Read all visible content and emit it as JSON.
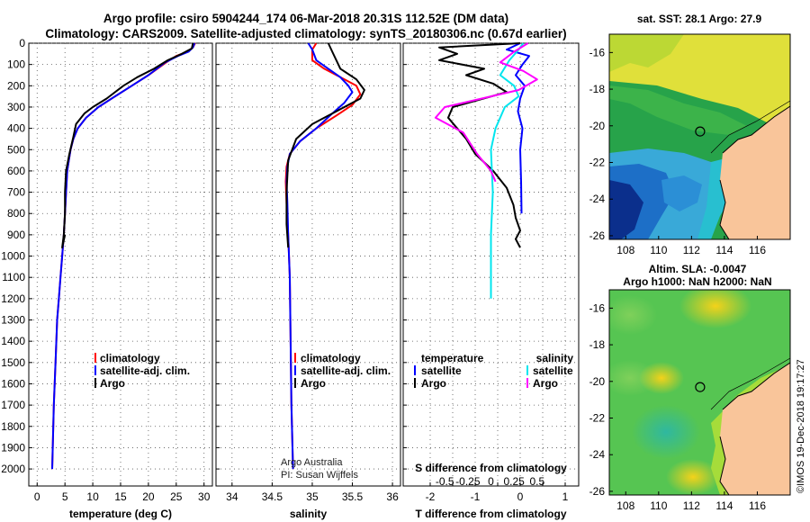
{
  "header": {
    "title_line1": "Argo profile: csiro 5904244_174 06-Mar-2018 20.31S 112.52E (DM data)",
    "title_line2": "Climatology: CARS2009. Satellite-adjusted climatology: synTS_20180306.nc (0.67d earlier)"
  },
  "colors": {
    "climatology": "#ff0000",
    "satellite": "#0000ff",
    "argo": "#000000",
    "sal_satellite": "#00e5ee",
    "sal_argo": "#ff00ff",
    "land": "#f9c59a"
  },
  "chart_data": [
    {
      "type": "line",
      "panel": "temperature",
      "xlabel": "temperature (deg C)",
      "ylabel": "",
      "xlim": [
        -1.5,
        31.5
      ],
      "ylim": [
        2080,
        0
      ],
      "y_ticks": [
        0,
        100,
        200,
        300,
        400,
        500,
        600,
        700,
        800,
        900,
        1000,
        1100,
        1200,
        1300,
        1400,
        1500,
        1600,
        1700,
        1800,
        1900,
        2000
      ],
      "x_ticks": [
        0,
        5,
        10,
        15,
        20,
        25,
        30
      ],
      "grid": true,
      "legend": {
        "placement": "bottom",
        "entries": [
          "climatology",
          "satellite-adj. clim.",
          "Argo"
        ]
      },
      "series": [
        {
          "name": "climatology",
          "color": "#ff0000",
          "x": [
            28.4,
            28.0,
            27.0,
            25.0,
            23.2,
            20.0,
            17.0,
            14.0,
            11.0,
            8.8,
            7.3,
            6.5,
            6.0,
            5.7,
            5.4,
            5.2,
            5.0,
            4.8,
            4.5,
            4.2,
            3.9,
            3.6,
            3.3,
            3.0,
            2.7
          ],
          "y": [
            0,
            20,
            40,
            60,
            90,
            150,
            200,
            250,
            300,
            350,
            400,
            450,
            500,
            550,
            600,
            700,
            800,
            900,
            1000,
            1100,
            1200,
            1300,
            1500,
            1700,
            2000
          ]
        },
        {
          "name": "satellite-adj. clim.",
          "color": "#0000ff",
          "x": [
            28.3,
            28.0,
            27.2,
            25.3,
            23.0,
            20.0,
            17.0,
            14.0,
            11.0,
            8.8,
            7.3,
            6.5,
            6.0,
            5.7,
            5.4,
            5.2,
            5.0,
            4.8,
            4.5,
            4.2,
            3.9,
            3.6,
            3.3,
            3.0,
            2.7
          ],
          "y": [
            0,
            20,
            40,
            60,
            90,
            150,
            200,
            250,
            300,
            350,
            400,
            450,
            500,
            550,
            600,
            700,
            800,
            900,
            1000,
            1100,
            1200,
            1300,
            1500,
            1700,
            2000
          ]
        },
        {
          "name": "Argo",
          "color": "#000000",
          "x": [
            28.0,
            27.8,
            26.0,
            23.5,
            21.0,
            18.0,
            15.5,
            12.5,
            10.0,
            8.5,
            7.0,
            6.5,
            5.8,
            5.2,
            5.0,
            5.0,
            4.8,
            4.5,
            5.0
          ],
          "y": [
            0,
            25,
            50,
            80,
            120,
            160,
            200,
            260,
            300,
            330,
            380,
            440,
            520,
            600,
            700,
            800,
            900,
            960,
            900
          ]
        }
      ]
    },
    {
      "type": "line",
      "panel": "salinity",
      "xlabel": "salinity",
      "ylabel": "",
      "xlim": [
        33.8,
        36.1
      ],
      "ylim": [
        2080,
        0
      ],
      "x_ticks": [
        34,
        34.5,
        35,
        35.5,
        36
      ],
      "grid": true,
      "legend": {
        "placement": "bottom-right",
        "entries": [
          "climatology",
          "satellite-adj. clim.",
          "Argo"
        ]
      },
      "annotation_line1": "Argo Australia",
      "annotation_line2": "PI: Susan Wijffels",
      "series": [
        {
          "name": "climatology",
          "color": "#ff0000",
          "x": [
            35.05,
            35.0,
            35.0,
            35.15,
            35.35,
            35.55,
            35.6,
            35.5,
            35.3,
            35.05,
            34.85,
            34.72,
            34.68,
            34.67,
            34.68,
            34.7,
            34.72,
            34.73,
            34.74,
            34.76
          ],
          "y": [
            0,
            30,
            80,
            120,
            160,
            200,
            240,
            290,
            340,
            400,
            460,
            520,
            580,
            650,
            750,
            900,
            1100,
            1400,
            1700,
            2000
          ]
        },
        {
          "name": "satellite-adj. clim.",
          "color": "#0000ff",
          "x": [
            34.95,
            35.0,
            35.05,
            35.2,
            35.35,
            35.45,
            35.5,
            35.4,
            35.25,
            35.05,
            34.85,
            34.72,
            34.69,
            34.68,
            34.69,
            34.7,
            34.72,
            34.73,
            34.74,
            34.76
          ],
          "y": [
            0,
            30,
            80,
            120,
            160,
            200,
            230,
            280,
            330,
            400,
            460,
            520,
            580,
            650,
            750,
            900,
            1100,
            1400,
            1700,
            2000
          ]
        },
        {
          "name": "Argo",
          "color": "#000000",
          "x": [
            35.2,
            35.25,
            35.3,
            35.35,
            35.55,
            35.65,
            35.6,
            35.3,
            35.0,
            34.8,
            34.7,
            34.68,
            34.68,
            34.7
          ],
          "y": [
            0,
            40,
            80,
            120,
            170,
            220,
            260,
            320,
            380,
            450,
            550,
            700,
            850,
            960
          ]
        }
      ]
    },
    {
      "type": "line",
      "panel": "difference",
      "xlabel": "T difference from climatology",
      "xlabel_top": "S difference from climatology",
      "xlim": [
        -2.6,
        1.3
      ],
      "ylim": [
        2080,
        0
      ],
      "x_ticks": [
        -2,
        -1.5,
        -1,
        -0.5,
        0,
        0.5,
        1
      ],
      "x_tick_labels": [
        "-2",
        "",
        "-1",
        "",
        "0",
        "",
        "1"
      ],
      "x_ticks_top": [
        -0.5,
        -0.25,
        0,
        0.25,
        0.5
      ],
      "x_tick_labels_top": [
        "-0.5",
        "-0.25",
        "0",
        "0.25",
        "0.5"
      ],
      "grid": true,
      "legend_temperature": {
        "heading": "temperature",
        "entries": [
          "satellite",
          "Argo"
        ]
      },
      "legend_salinity": {
        "heading": "salinity",
        "entries": [
          "satellite",
          "Argo"
        ]
      },
      "series": [
        {
          "name": "satellite",
          "group": "temperature",
          "color": "#0000ff",
          "x": [
            0.0,
            -0.3,
            0.2,
            0.05,
            -0.1,
            0.1,
            0.0,
            -0.05,
            0.05,
            0.0,
            0.02,
            0.03
          ],
          "y": [
            0,
            30,
            60,
            100,
            150,
            200,
            260,
            320,
            400,
            500,
            650,
            800
          ]
        },
        {
          "name": "Argo",
          "group": "temperature",
          "color": "#000000",
          "x": [
            0.0,
            -1.8,
            -1.4,
            -1.8,
            -0.8,
            -1.2,
            -0.6,
            -0.3,
            -1.5,
            -1.6,
            -1.2,
            -1.0,
            -0.6,
            -0.3,
            -0.15,
            -0.1,
            0.0,
            -0.1,
            0.0
          ],
          "y": [
            0,
            20,
            50,
            80,
            120,
            150,
            190,
            230,
            300,
            350,
            450,
            520,
            600,
            680,
            760,
            820,
            880,
            920,
            960
          ]
        },
        {
          "name": "satellite",
          "group": "salinity",
          "color": "#00e5ee",
          "x": [
            0.35,
            0.3,
            0.2,
            0.1,
            0.25,
            0.3,
            0.15,
            0.05,
            0.0,
            0.02,
            0.0,
            0.0,
            0.0
          ],
          "y": [
            0,
            30,
            80,
            150,
            200,
            250,
            300,
            400,
            500,
            700,
            900,
            1100,
            1200
          ]
        },
        {
          "name": "Argo",
          "group": "salinity",
          "color": "#ff00ff",
          "x": [
            0.4,
            0.25,
            0.1,
            0.35,
            0.5,
            0.3,
            -0.1,
            -0.5,
            -0.6,
            -0.3,
            -0.15,
            0.0,
            0.05
          ],
          "y": [
            0,
            40,
            90,
            130,
            170,
            220,
            260,
            300,
            350,
            420,
            520,
            600,
            650
          ]
        }
      ]
    }
  ],
  "maps": {
    "sst": {
      "title": "sat. SST: 28.1 Argo: 27.9",
      "lat_ticks": [
        "-16",
        "-18",
        "-20",
        "-22",
        "-24",
        "-26"
      ],
      "lon_ticks": [
        "108",
        "110",
        "112",
        "114",
        "116"
      ],
      "marker_lat": -20.31,
      "marker_lon": 112.52
    },
    "sla": {
      "title_line1": "Altim. SLA: -0.0047",
      "title_line2": "Argo h1000: NaN h2000: NaN",
      "lat_ticks": [
        "-16",
        "-18",
        "-20",
        "-22",
        "-24",
        "-26"
      ],
      "lon_ticks": [
        "108",
        "110",
        "112",
        "114",
        "116"
      ],
      "marker_lat": -20.31,
      "marker_lon": 112.52
    }
  },
  "footer": {
    "credit": "©IMOS 19-Dec-2018 19:17:27"
  }
}
